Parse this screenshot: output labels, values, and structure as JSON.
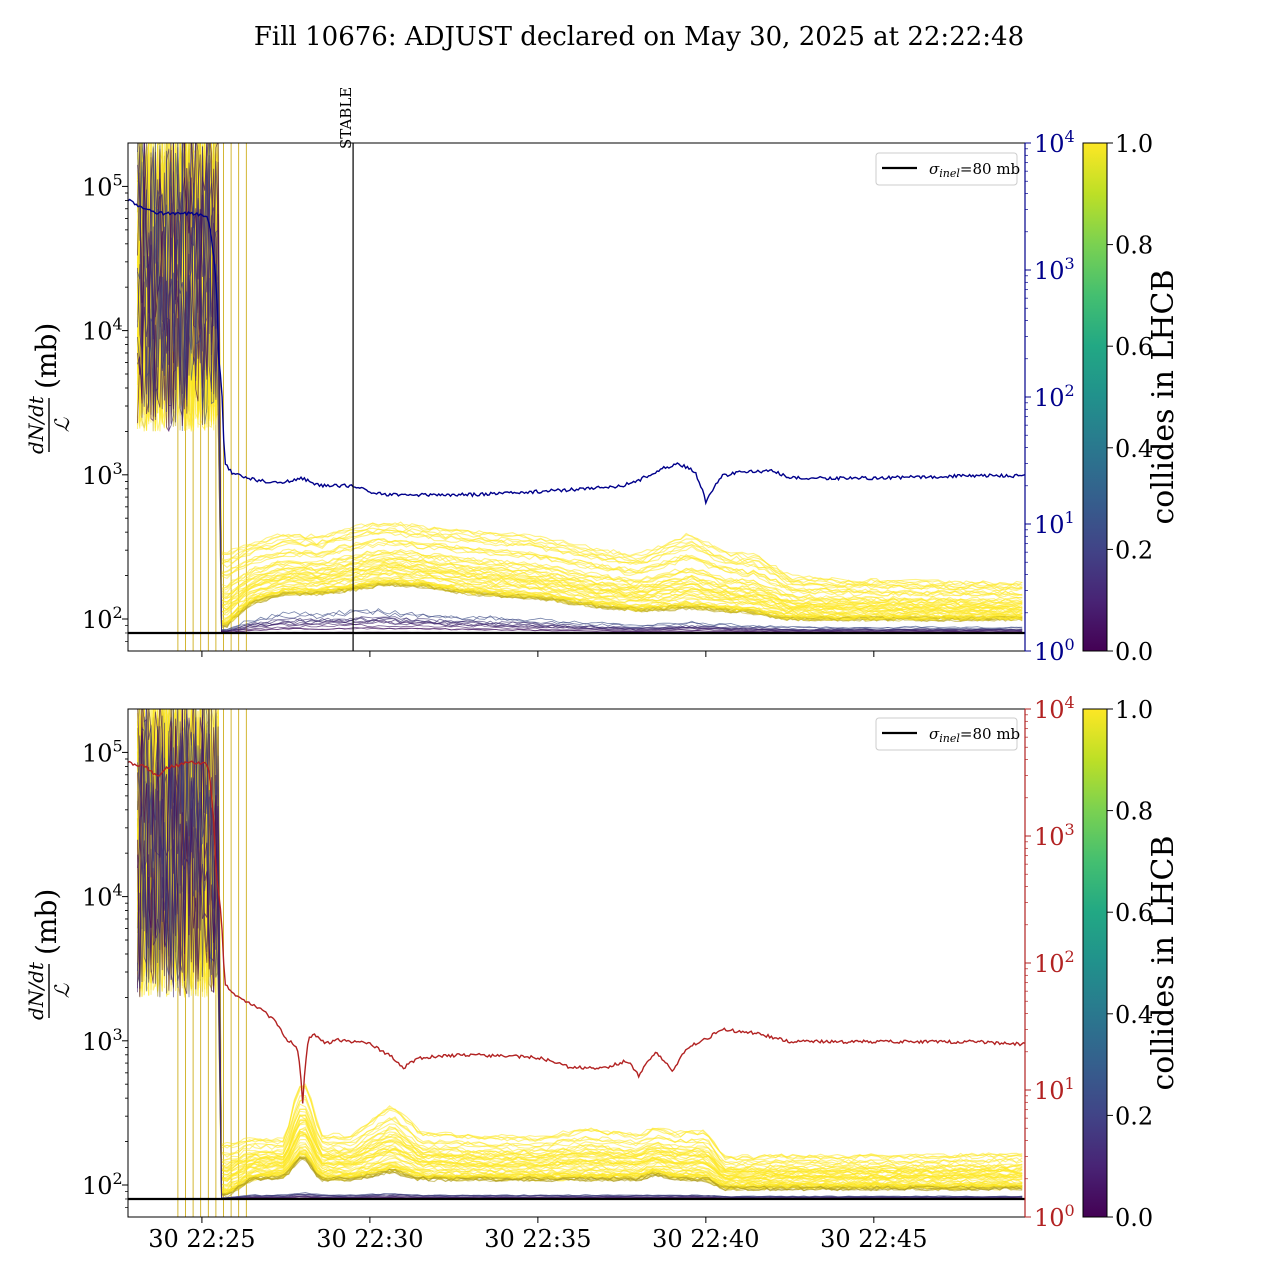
{
  "title": "Fill 10676: ADJUST declared on May 30, 2025 at 22:22:48",
  "colors": {
    "top_rate_line": "#00008b",
    "bottom_rate_line": "#b22222",
    "sigma_line": "#000000",
    "colliding": "#fde725",
    "non_colliding": "#440154"
  },
  "chart_data": [
    {
      "type": "line",
      "panel": "top",
      "title": "",
      "ylabel": "dN/dt / L (mb)",
      "ylabel_parts": {
        "numerator": "dN/dt",
        "denominator": "ℒ",
        "unit": "(mb)"
      },
      "yscale": "log",
      "ylim": [
        60,
        200000
      ],
      "yticks": [
        {
          "value": 100,
          "label": "10",
          "exp": "2"
        },
        {
          "value": 1000,
          "label": "10",
          "exp": "3"
        },
        {
          "value": 10000,
          "label": "10",
          "exp": "4"
        },
        {
          "value": 100000,
          "label": "10",
          "exp": "5"
        }
      ],
      "xlim": [
        "22:22:48",
        "22:49:30"
      ],
      "xticks": [
        "30 22:25",
        "30 22:30",
        "30 22:35",
        "30 22:40",
        "30 22:45"
      ],
      "show_xtick_labels": false,
      "secondary_axis": {
        "scale": "log",
        "ylim": [
          1,
          10000
        ],
        "color": "#00008b",
        "ticks": [
          {
            "value": 1,
            "label": "10",
            "exp": "0"
          },
          {
            "value": 10,
            "label": "10",
            "exp": "1"
          },
          {
            "value": 100,
            "label": "10",
            "exp": "2"
          },
          {
            "value": 1000,
            "label": "10",
            "exp": "3"
          },
          {
            "value": 10000,
            "label": "10",
            "exp": "4"
          }
        ]
      },
      "annotation": {
        "label": "STABLE",
        "x": "22:29:30"
      },
      "legend": {
        "placement": "top-right",
        "entries": [
          {
            "label": "σinel=80 mb",
            "sym": "σ",
            "sub": "inel",
            "rest": "=80 mb"
          }
        ]
      },
      "sigma_inel_mb": 80,
      "colorbar": {
        "label": "collides in LHCB",
        "range": [
          0,
          1
        ],
        "ticks": [
          "0.0",
          "0.2",
          "0.4",
          "0.6",
          "0.8",
          "1.0"
        ],
        "colormap": [
          "#440154",
          "#482475",
          "#414487",
          "#355f8d",
          "#2a788e",
          "#21918c",
          "#22a884",
          "#44bf70",
          "#7ad151",
          "#bddf26",
          "#fde725"
        ]
      },
      "secondary_series": {
        "x": [
          "22:22:48",
          "22:23:10",
          "22:23:40",
          "22:24:30",
          "22:25:10",
          "22:25:20",
          "22:25:30",
          "22:25:40",
          "22:25:55",
          "22:26:10",
          "22:26:40",
          "22:27:20",
          "22:28:00",
          "22:28:30",
          "22:29:00",
          "22:29:30",
          "22:30:00",
          "22:30:30",
          "22:31:30",
          "22:33:00",
          "22:35:00",
          "22:36:30",
          "22:37:30",
          "22:38:00",
          "22:38:40",
          "22:39:10",
          "22:39:40",
          "22:40:00",
          "22:40:30",
          "22:41:10",
          "22:42:00",
          "22:42:30",
          "22:45:00",
          "22:48:00",
          "22:49:30"
        ],
        "y": [
          3600,
          3100,
          2800,
          2800,
          2700,
          1400,
          200,
          30,
          25,
          24,
          22,
          21,
          23,
          20,
          20,
          20,
          18,
          17,
          17,
          17,
          18,
          19,
          20,
          22,
          27,
          30,
          26,
          15,
          24,
          26,
          26,
          23,
          23,
          24,
          24
        ]
      },
      "bunch_band": {
        "x": [
          "22:25:45",
          "22:26:30",
          "22:27:30",
          "22:28:30",
          "22:29:30",
          "22:30:30",
          "22:31:30",
          "22:33:00",
          "22:35:00",
          "22:36:30",
          "22:38:00",
          "22:39:30",
          "22:40:30",
          "22:41:30",
          "22:42:30",
          "22:44:00",
          "22:46:00",
          "22:49:30"
        ],
        "colliding_median": [
          90,
          130,
          150,
          150,
          160,
          175,
          170,
          150,
          140,
          125,
          115,
          120,
          115,
          110,
          100,
          100,
          100,
          100
        ],
        "colliding_upper": [
          300,
          350,
          400,
          380,
          450,
          480,
          450,
          420,
          380,
          320,
          280,
          400,
          300,
          280,
          200,
          190,
          185,
          180
        ],
        "non_colliding_max": [
          85,
          100,
          110,
          110,
          115,
          115,
          110,
          105,
          100,
          95,
          90,
          95,
          92,
          90,
          88,
          88,
          88,
          88
        ]
      }
    },
    {
      "type": "line",
      "panel": "bottom",
      "title": "",
      "ylabel": "dN/dt / L (mb)",
      "ylabel_parts": {
        "numerator": "dN/dt",
        "denominator": "ℒ",
        "unit": "(mb)"
      },
      "yscale": "log",
      "ylim": [
        60,
        200000
      ],
      "yticks": [
        {
          "value": 100,
          "label": "10",
          "exp": "2"
        },
        {
          "value": 1000,
          "label": "10",
          "exp": "3"
        },
        {
          "value": 10000,
          "label": "10",
          "exp": "4"
        },
        {
          "value": 100000,
          "label": "10",
          "exp": "5"
        }
      ],
      "xlim": [
        "22:22:48",
        "22:49:30"
      ],
      "xticks": [
        "30 22:25",
        "30 22:30",
        "30 22:35",
        "30 22:40",
        "30 22:45"
      ],
      "show_xtick_labels": true,
      "secondary_axis": {
        "scale": "log",
        "ylim": [
          1,
          10000
        ],
        "color": "#b22222",
        "ticks": [
          {
            "value": 1,
            "label": "10",
            "exp": "0"
          },
          {
            "value": 10,
            "label": "10",
            "exp": "1"
          },
          {
            "value": 100,
            "label": "10",
            "exp": "2"
          },
          {
            "value": 1000,
            "label": "10",
            "exp": "3"
          },
          {
            "value": 10000,
            "label": "10",
            "exp": "4"
          }
        ]
      },
      "legend": {
        "placement": "top-right",
        "entries": [
          {
            "label": "σinel=80 mb",
            "sym": "σ",
            "sub": "inel",
            "rest": "=80 mb"
          }
        ]
      },
      "sigma_inel_mb": 80,
      "colorbar": {
        "label": "collides in LHCB",
        "range": [
          0,
          1
        ],
        "ticks": [
          "0.0",
          "0.2",
          "0.4",
          "0.6",
          "0.8",
          "1.0"
        ],
        "colormap": [
          "#440154",
          "#482475",
          "#414487",
          "#355f8d",
          "#2a788e",
          "#21918c",
          "#22a884",
          "#44bf70",
          "#7ad151",
          "#bddf26",
          "#fde725"
        ]
      },
      "secondary_series": {
        "x": [
          "22:22:48",
          "22:23:20",
          "22:23:40",
          "22:24:00",
          "22:24:40",
          "22:25:10",
          "22:25:20",
          "22:25:25",
          "22:25:40",
          "22:26:00",
          "22:26:40",
          "22:27:10",
          "22:27:30",
          "22:27:50",
          "22:28:00",
          "22:28:10",
          "22:28:20",
          "22:28:40",
          "22:29:00",
          "22:30:00",
          "22:30:40",
          "22:31:00",
          "22:31:30",
          "22:33:00",
          "22:35:00",
          "22:36:00",
          "22:37:00",
          "22:37:40",
          "22:38:00",
          "22:38:30",
          "22:39:00",
          "22:39:30",
          "22:40:00",
          "22:40:30",
          "22:41:30",
          "22:42:30",
          "22:45:00",
          "22:48:00",
          "22:49:30"
        ],
        "y": [
          3800,
          3500,
          2900,
          3500,
          3800,
          3700,
          1500,
          500,
          70,
          55,
          45,
          35,
          25,
          22,
          8,
          25,
          28,
          23,
          25,
          23,
          18,
          15,
          18,
          19,
          18,
          15,
          15,
          17,
          13,
          20,
          14,
          22,
          25,
          30,
          28,
          24,
          24,
          24,
          23
        ]
      },
      "bunch_band": {
        "x": [
          "22:25:45",
          "22:26:30",
          "22:27:30",
          "22:28:00",
          "22:28:30",
          "22:29:30",
          "22:30:40",
          "22:31:30",
          "22:33:00",
          "22:35:00",
          "22:36:30",
          "22:38:00",
          "22:38:30",
          "22:39:10",
          "22:40:00",
          "22:40:30",
          "22:42:00",
          "22:44:00",
          "22:46:00",
          "22:49:30"
        ],
        "colliding_median": [
          85,
          110,
          115,
          160,
          110,
          110,
          125,
          110,
          110,
          110,
          110,
          110,
          120,
          110,
          110,
          95,
          95,
          95,
          95,
          95
        ],
        "colliding_upper": [
          200,
          220,
          210,
          600,
          230,
          230,
          380,
          240,
          230,
          220,
          260,
          230,
          260,
          240,
          250,
          160,
          165,
          165,
          165,
          170
        ],
        "non_colliding_max": [
          82,
          86,
          86,
          90,
          86,
          86,
          88,
          86,
          86,
          86,
          86,
          86,
          86,
          86,
          86,
          84,
          84,
          84,
          84,
          84
        ]
      }
    }
  ]
}
